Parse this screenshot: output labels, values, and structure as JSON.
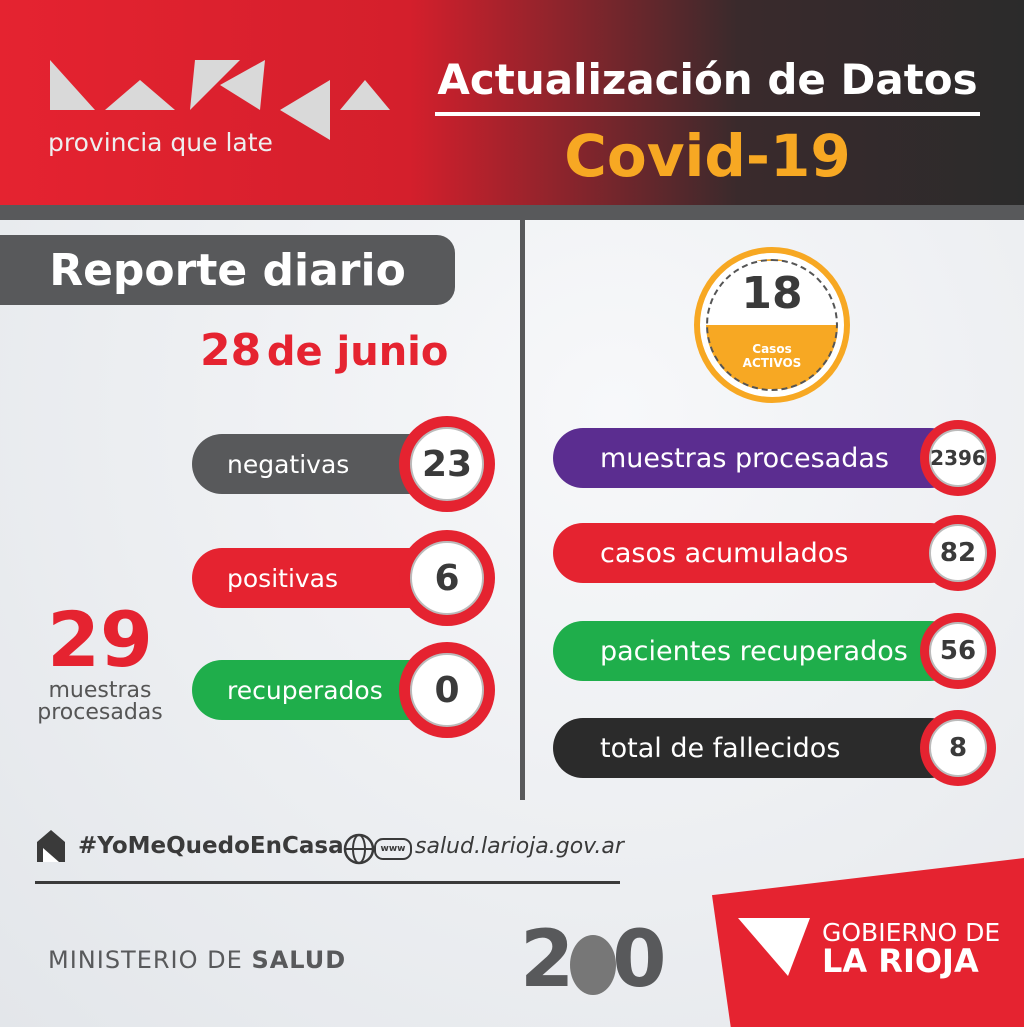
{
  "header": {
    "tagline": "provincia que late",
    "title": "Actualización de Datos",
    "subtitle": "Covid-19"
  },
  "report": {
    "title": "Reporte diario",
    "day": "28",
    "month": "de junio",
    "items": [
      {
        "label": "negativas",
        "value": 23,
        "color": "#58595b"
      },
      {
        "label": "positivas",
        "value": 6,
        "color": "#e52330"
      },
      {
        "label": "recuperados",
        "value": 0,
        "color": "#1fae4b"
      }
    ],
    "total": {
      "value": 29,
      "label_line1": "muestras",
      "label_line2": "procesadas"
    }
  },
  "summary": {
    "active": {
      "value": 18,
      "label_line1": "Casos",
      "label_line2": "ACTIVOS"
    },
    "items": [
      {
        "label": "muestras procesadas",
        "value": 2396,
        "color": "#5b2d90"
      },
      {
        "label": "casos acumulados",
        "value": 82,
        "color": "#e52330"
      },
      {
        "label": "pacientes recuperados",
        "value": 56,
        "color": "#1fae4b"
      },
      {
        "label": "total de fallecidos",
        "value": 8,
        "color": "#2b2b2b"
      }
    ]
  },
  "footer": {
    "hashtag": "#YoMeQuedoEnCasa",
    "www": "www",
    "website": "salud.larioja.gov.ar",
    "ministry_prefix": "MINISTERIO DE",
    "ministry_name": "SALUD",
    "anniversary_left": "2",
    "anniversary_right": "0",
    "government_line1": "GOBIERNO DE",
    "government_line2": "LA RIOJA"
  }
}
